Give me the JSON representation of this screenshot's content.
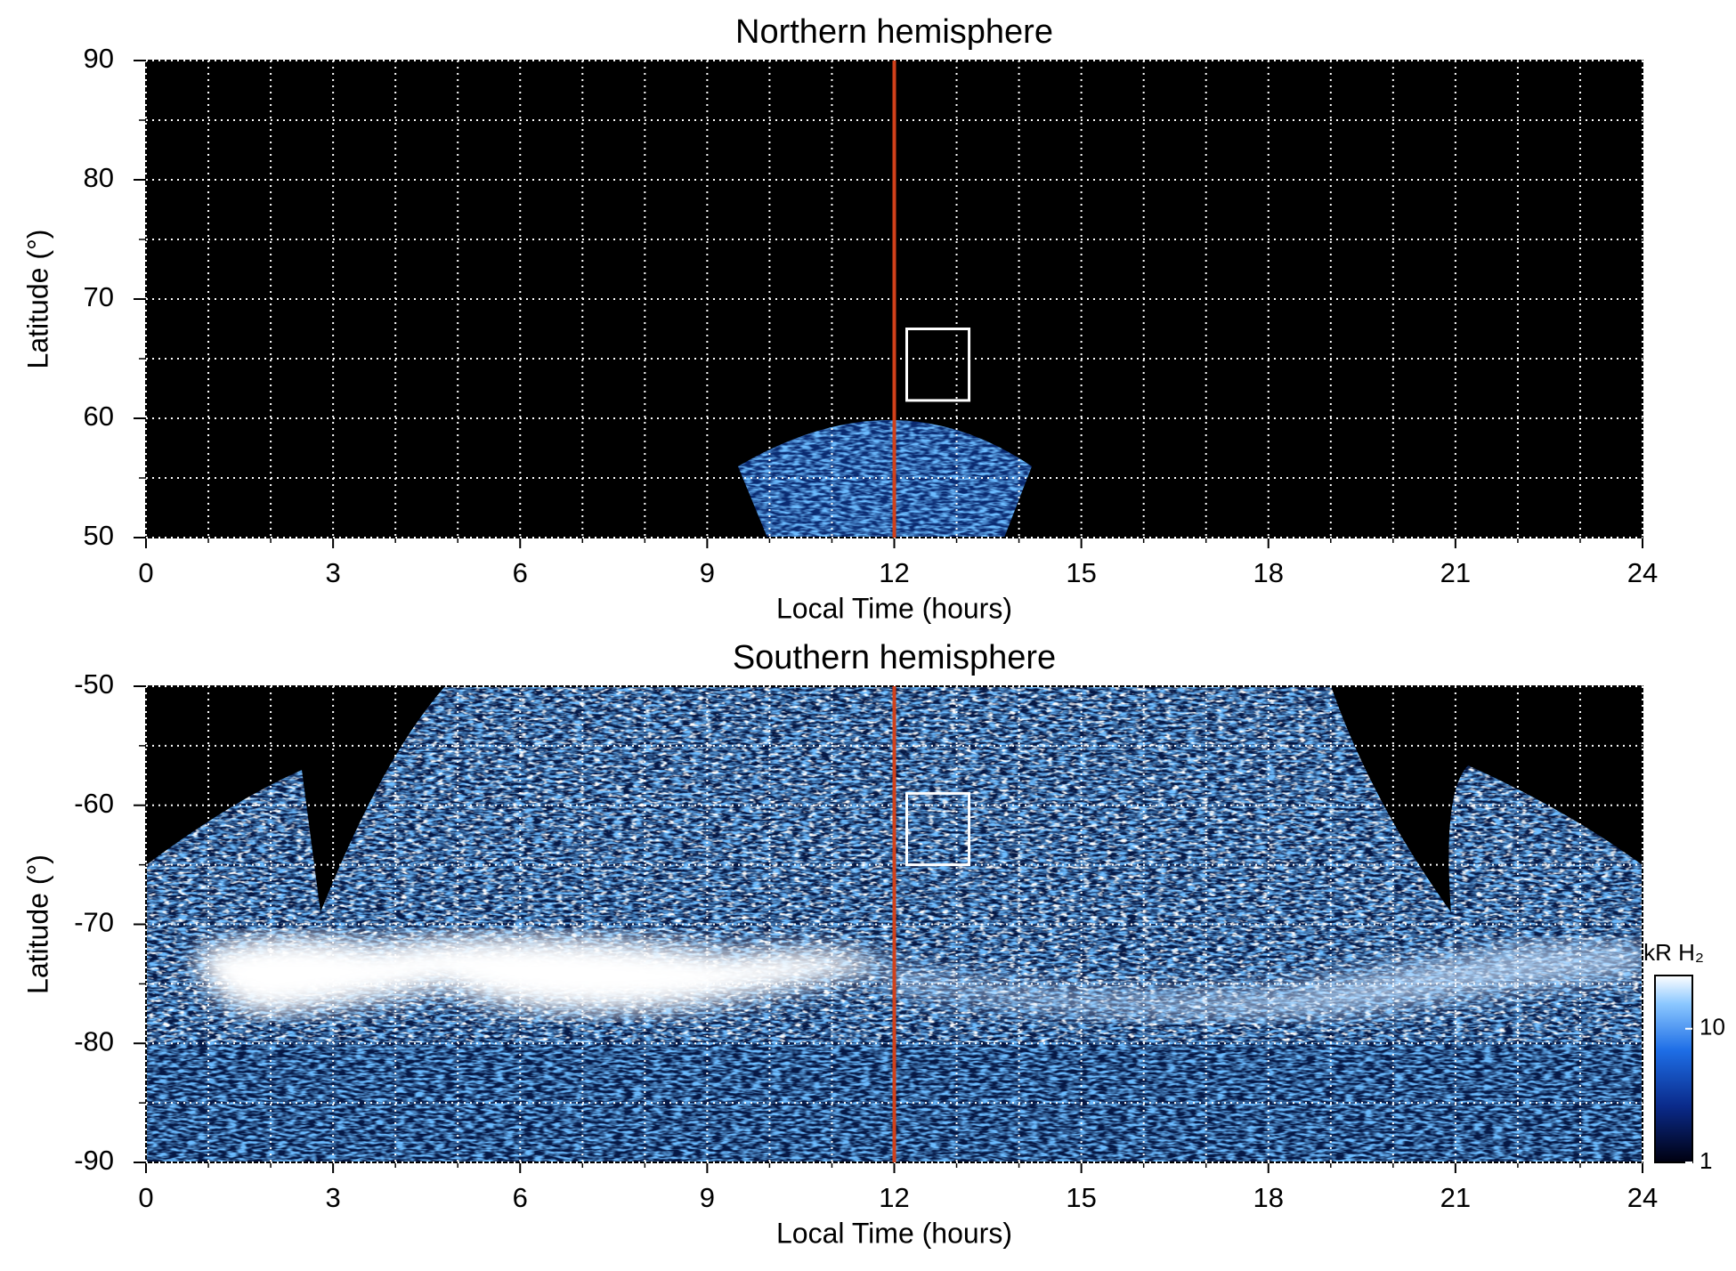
{
  "chart_data": [
    {
      "type": "heatmap",
      "title": "Northern hemisphere",
      "x_label": "Local Time (hours)",
      "y_label": "Latitude (°)",
      "xlim": [
        0,
        24
      ],
      "xticks": [
        0,
        3,
        6,
        9,
        12,
        15,
        18,
        21,
        24
      ],
      "xgrid": [
        1,
        2,
        4,
        5,
        7,
        8,
        10,
        11,
        13,
        14,
        16,
        17,
        19,
        20,
        22,
        23
      ],
      "ylim": [
        50,
        90
      ],
      "yticks": [
        50,
        60,
        70,
        80,
        90
      ],
      "ygrid": [
        55,
        65,
        75,
        85
      ],
      "marker_x": 12,
      "marker_color": "#d0401a",
      "box": {
        "x": [
          12.2,
          13.2
        ],
        "y": [
          61.5,
          67.5
        ]
      }
    },
    {
      "type": "heatmap",
      "title": "Southern hemisphere",
      "x_label": "Local Time (hours)",
      "y_label": "Latitude (°)",
      "xlim": [
        0,
        24
      ],
      "xticks": [
        0,
        3,
        6,
        9,
        12,
        15,
        18,
        21,
        24
      ],
      "xgrid": [
        1,
        2,
        4,
        5,
        7,
        8,
        10,
        11,
        13,
        14,
        16,
        17,
        19,
        20,
        22,
        23
      ],
      "ylim": [
        -90,
        -50
      ],
      "yticks": [
        -90,
        -80,
        -70,
        -60,
        -50
      ],
      "ygrid": [
        -85,
        -75,
        -65,
        -55
      ],
      "marker_x": 12,
      "marker_color": "#d0401a",
      "box": {
        "x": [
          12.2,
          13.2
        ],
        "y": [
          -65,
          -59
        ]
      },
      "colorbar": {
        "label": "kR H₂",
        "lim": [
          1,
          25
        ],
        "ticks": [
          1,
          10
        ],
        "log": true
      }
    }
  ]
}
